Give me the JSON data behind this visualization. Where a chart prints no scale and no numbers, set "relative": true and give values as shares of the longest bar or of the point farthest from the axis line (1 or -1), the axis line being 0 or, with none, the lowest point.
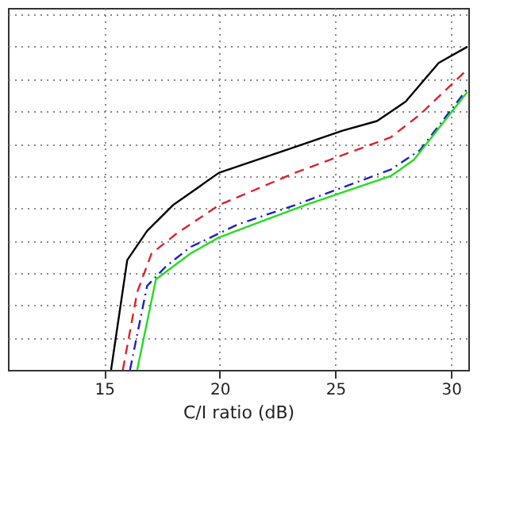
{
  "chart_data": {
    "type": "line",
    "xlabel": "C/I ratio (dB)",
    "relative": true,
    "xlim": [
      10.84,
      30.75
    ],
    "xticks": [
      15,
      20,
      25,
      30
    ],
    "grid": true,
    "marker": "none",
    "series": [
      {
        "color": "#000000",
        "line_style": "solid",
        "x": [
          15.3,
          16.0,
          16.86,
          17.98,
          19.97,
          23.26,
          25.31,
          26.8,
          28.04,
          29.47,
          30.71
        ],
        "values": [
          0,
          0.34,
          0.43,
          0.51,
          0.61,
          0.69,
          0.74,
          0.77,
          0.83,
          0.95,
          1.0
        ]
      },
      {
        "color": "#e0202a",
        "line_style": "dashed",
        "x": [
          15.81,
          16.43,
          17.05,
          18.1,
          19.97,
          23.26,
          27.4,
          28.66,
          30.71
        ],
        "values": [
          0,
          0.24,
          0.36,
          0.42,
          0.51,
          0.61,
          0.72,
          0.79,
          0.93
        ]
      },
      {
        "color": "#2020c0",
        "line_style": "dashdot",
        "x": [
          16.12,
          16.86,
          17.67,
          18.73,
          20.78,
          23.26,
          27.4,
          28.66,
          30.71
        ],
        "values": [
          0,
          0.26,
          0.32,
          0.38,
          0.45,
          0.51,
          0.62,
          0.68,
          0.87
        ]
      },
      {
        "color": "#22dd22",
        "line_style": "solid",
        "x": [
          16.43,
          17.24,
          18.73,
          19.97,
          21.83,
          23.7,
          27.4,
          28.4,
          30.71
        ],
        "values": [
          0,
          0.28,
          0.36,
          0.41,
          0.46,
          0.51,
          0.6,
          0.65,
          0.86
        ]
      }
    ]
  }
}
